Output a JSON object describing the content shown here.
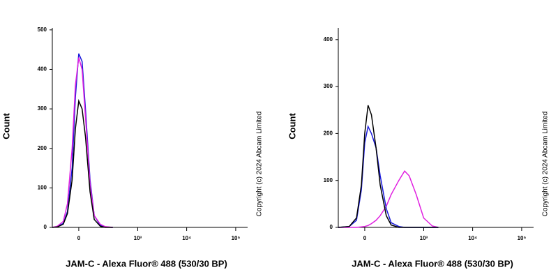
{
  "chart_data": [
    {
      "type": "line",
      "xscale": "biexponential",
      "ylabel": "Count",
      "xlabel": "JAM-C - Alexa Fluor® 488 (530/30 BP)",
      "annotation": "Copyright (c) 2024 Abcam Limited",
      "xlim": [
        -200,
        175000
      ],
      "ylim": [
        0,
        505
      ],
      "xticks": [
        0,
        {
          "value": 1000,
          "label": "10³"
        },
        {
          "value": 10000,
          "label": "10⁴"
        },
        {
          "value": 100000,
          "label": "10⁵"
        }
      ],
      "yticks": [
        0,
        100,
        200,
        300,
        400,
        500
      ],
      "x": [
        -200,
        -150,
        -100,
        -70,
        -40,
        -20,
        0,
        20,
        40,
        70,
        100,
        150,
        200,
        300
      ],
      "series": [
        {
          "color": "#1a1adb",
          "values": [
            0,
            2,
            10,
            40,
            150,
            330,
            440,
            420,
            300,
            120,
            30,
            5,
            1,
            0
          ]
        },
        {
          "color": "#e020e0",
          "values": [
            0,
            3,
            15,
            60,
            200,
            360,
            430,
            400,
            280,
            110,
            30,
            8,
            2,
            0
          ]
        },
        {
          "color": "#000000",
          "values": [
            0,
            1,
            8,
            35,
            120,
            250,
            320,
            300,
            230,
            90,
            20,
            3,
            0,
            0
          ]
        }
      ]
    },
    {
      "type": "line",
      "xscale": "biexponential",
      "ylabel": "Count",
      "xlabel": "JAM-C - Alexa Fluor® 488 (530/30 BP)",
      "annotation": "Copyright (c) 2024 Abcam Limited",
      "xlim": [
        -200,
        175000
      ],
      "ylim": [
        0,
        425
      ],
      "xticks": [
        0,
        {
          "value": 1000,
          "label": "10³"
        },
        {
          "value": 10000,
          "label": "10⁴"
        },
        {
          "value": 100000,
          "label": "10⁵"
        }
      ],
      "yticks": [
        0,
        100,
        200,
        300,
        400
      ],
      "x": [
        -200,
        -100,
        -50,
        -20,
        0,
        20,
        40,
        70,
        100,
        150,
        200,
        300,
        400,
        500,
        700,
        1000,
        1500,
        2000
      ],
      "series": [
        {
          "color": "#e020e0",
          "values": [
            0,
            0,
            0,
            1,
            2,
            4,
            8,
            15,
            25,
            45,
            70,
            100,
            120,
            110,
            70,
            20,
            3,
            0
          ]
        },
        {
          "color": "#1a1adb",
          "values": [
            0,
            2,
            15,
            80,
            180,
            215,
            200,
            170,
            110,
            40,
            10,
            2,
            0,
            0,
            0,
            0,
            0,
            0
          ]
        },
        {
          "color": "#000000",
          "values": [
            0,
            2,
            20,
            90,
            200,
            260,
            240,
            170,
            90,
            25,
            5,
            0,
            0,
            0,
            0,
            0,
            0,
            0
          ]
        }
      ]
    }
  ]
}
